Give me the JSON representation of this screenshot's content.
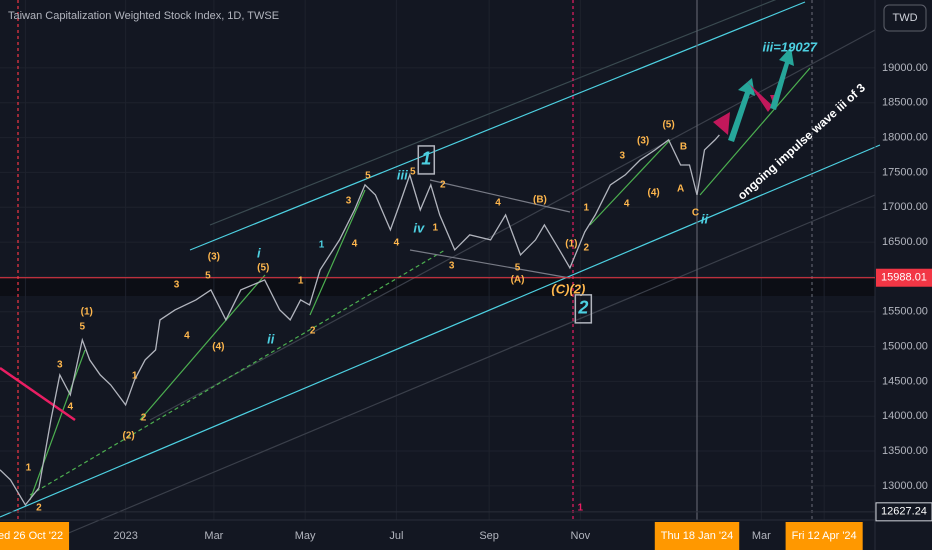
{
  "chart_data": {
    "type": "line",
    "title": "Taiwan Capitalization Weighted Stock Index, 1D, TWSE",
    "currency": "TWD",
    "series": [
      {
        "name": "Taiwan Capitalization Weighted Stock Index",
        "color": "#b2b5be",
        "x": [
          -17,
          -10,
          0,
          9,
          17,
          23,
          30,
          38,
          43,
          50,
          57,
          67,
          73,
          80,
          87,
          90,
          100,
          114,
          124,
          134,
          144,
          160,
          170,
          177,
          184,
          190,
          197,
          210,
          220,
          227,
          234,
          244,
          250,
          257,
          264,
          271,
          277,
          287,
          297,
          311,
          321,
          331,
          341,
          347,
          357,
          364,
          369,
          374,
          381,
          391,
          401,
          411,
          421,
          430,
          438,
          444,
          449,
          454,
          461,
          464
        ],
        "values": [
          13230,
          13086,
          12727,
          12971,
          13947,
          14593,
          14306,
          15096,
          14809,
          14593,
          14450,
          14163,
          14522,
          14809,
          14952,
          15383,
          15526,
          15670,
          15813,
          15383,
          15813,
          15957,
          15526,
          15383,
          15670,
          15598,
          16100,
          16531,
          16962,
          17321,
          17177,
          16675,
          17033,
          17464,
          16962,
          17321,
          16890,
          16387,
          16603,
          16531,
          16890,
          16316,
          16531,
          16746,
          16387,
          16129,
          16387,
          16646,
          16890,
          17321,
          17464,
          17679,
          17823,
          17966,
          17607,
          17607,
          17177,
          17823,
          17966,
          18038
        ]
      }
    ],
    "xlim": [
      -17,
      568
    ],
    "xticks": [
      {
        "value": 0,
        "label": "Wed 26 Oct '22"
      },
      {
        "value": 67,
        "label": "2023"
      },
      {
        "value": 126,
        "label": "Mar"
      },
      {
        "value": 187,
        "label": "May"
      },
      {
        "value": 248,
        "label": "Jul"
      },
      {
        "value": 310,
        "label": "Sep"
      },
      {
        "value": 371,
        "label": "Nov"
      },
      {
        "value": 449,
        "label": "Thu 18 Jan '24"
      },
      {
        "value": 492,
        "label": "Mar"
      },
      {
        "value": 534,
        "label": "Fri 12 Apr '24"
      }
    ],
    "highlighted_xticks": [
      0,
      7,
      9
    ],
    "ylim": [
      12510,
      19975
    ],
    "yticks": [
      {
        "value": 13000,
        "label": "13000.00"
      },
      {
        "value": 13500,
        "label": "13500.00"
      },
      {
        "value": 14000,
        "label": "14000.00"
      },
      {
        "value": 14500,
        "label": "14500.00"
      },
      {
        "value": 15000,
        "label": "15000.00"
      },
      {
        "value": 15500,
        "label": "15500.00"
      },
      {
        "value": 16000,
        "label": "16000.00"
      },
      {
        "value": 16500,
        "label": "16500.00"
      },
      {
        "value": 17000,
        "label": "17000.00"
      },
      {
        "value": 17500,
        "label": "17500.00"
      },
      {
        "value": 18000,
        "label": "18000.00"
      },
      {
        "value": 18500,
        "label": "18500.00"
      },
      {
        "value": 19000,
        "label": "19000.00"
      }
    ],
    "price_markers": [
      {
        "value": 15988.01,
        "label": "15988.01",
        "color": "#f23645"
      },
      {
        "value": 12627.24,
        "label": "12627.24",
        "color": "#131722"
      }
    ],
    "annotations": [
      {
        "text": "(1)",
        "x": 41,
        "y": 15498,
        "color": "#ffb74d"
      },
      {
        "text": "5",
        "x": 38,
        "y": 15282,
        "color": "#ffb74d"
      },
      {
        "text": "3",
        "x": 23,
        "y": 14737,
        "color": "#ffb74d"
      },
      {
        "text": "4",
        "x": 30,
        "y": 14134,
        "color": "#ffb74d"
      },
      {
        "text": "2",
        "x": 9,
        "y": 12684,
        "color": "#ffb74d"
      },
      {
        "text": "1",
        "x": 2,
        "y": 13258,
        "color": "#ffb74d"
      },
      {
        "text": "2",
        "x": 79,
        "y": 13976,
        "color": "#ffb74d"
      },
      {
        "text": "(2)",
        "x": 69,
        "y": 13718,
        "color": "#ffb74d"
      },
      {
        "text": "1",
        "x": 73,
        "y": 14579,
        "color": "#ffb74d"
      },
      {
        "text": "3",
        "x": 101,
        "y": 15885,
        "color": "#ffb74d"
      },
      {
        "text": "5",
        "x": 122,
        "y": 16014,
        "color": "#ffb74d"
      },
      {
        "text": "(3)",
        "x": 126,
        "y": 16287,
        "color": "#ffb74d"
      },
      {
        "text": "4",
        "x": 108,
        "y": 15153,
        "color": "#ffb74d"
      },
      {
        "text": "(4)",
        "x": 129,
        "y": 14995,
        "color": "#ffb74d"
      },
      {
        "text": "(5)",
        "x": 159,
        "y": 16129,
        "color": "#ffb74d"
      },
      {
        "text": "i",
        "x": 156,
        "y": 16330,
        "color": "#4dd0e1"
      },
      {
        "text": "ii",
        "x": 164,
        "y": 15096,
        "color": "#4dd0e1"
      },
      {
        "text": "1",
        "x": 184,
        "y": 15943,
        "color": "#ffb74d"
      },
      {
        "text": "2",
        "x": 192,
        "y": 15225,
        "color": "#ffb74d"
      },
      {
        "text": "3",
        "x": 216,
        "y": 17091,
        "color": "#ffb74d"
      },
      {
        "text": "4",
        "x": 220,
        "y": 16474,
        "color": "#ffb74d"
      },
      {
        "text": "5",
        "x": 229,
        "y": 17450,
        "color": "#ffb74d"
      },
      {
        "text": "1",
        "x": 198,
        "y": 16459,
        "color": "#4dd0e1"
      },
      {
        "text": "iii",
        "x": 252,
        "y": 17450,
        "color": "#4dd0e1"
      },
      {
        "text": "5",
        "x": 259,
        "y": 17507,
        "color": "#ffb74d"
      },
      {
        "text": "iv",
        "x": 263,
        "y": 16689,
        "color": "#4dd0e1"
      },
      {
        "text": "1",
        "x": 268,
        "y": 17679,
        "color": "#4dd0e1",
        "boxed": true
      },
      {
        "text": "2",
        "x": 279,
        "y": 17321,
        "color": "#ffb74d"
      },
      {
        "text": "1",
        "x": 274,
        "y": 16703,
        "color": "#ffb74d"
      },
      {
        "text": "4",
        "x": 248,
        "y": 16488,
        "color": "#ffb74d"
      },
      {
        "text": "3",
        "x": 285,
        "y": 16158,
        "color": "#ffb74d"
      },
      {
        "text": "4",
        "x": 316,
        "y": 17062,
        "color": "#ffb74d"
      },
      {
        "text": "(B)",
        "x": 344,
        "y": 17105,
        "color": "#ffb74d"
      },
      {
        "text": "5",
        "x": 329,
        "y": 16129,
        "color": "#ffb74d"
      },
      {
        "text": "(A)",
        "x": 329,
        "y": 15957,
        "color": "#ffb74d"
      },
      {
        "text": "(C)(2)",
        "x": 363,
        "y": 15813,
        "color": "#ffb74d"
      },
      {
        "text": "2",
        "x": 373,
        "y": 15541,
        "color": "#4dd0e1",
        "boxed": true
      },
      {
        "text": "(1)",
        "x": 365,
        "y": 16474,
        "color": "#ffb74d"
      },
      {
        "text": "2",
        "x": 375,
        "y": 16416,
        "color": "#ffb74d"
      },
      {
        "text": "1",
        "x": 375,
        "y": 16990,
        "color": "#ffb74d"
      },
      {
        "text": "3",
        "x": 399,
        "y": 17737,
        "color": "#ffb74d"
      },
      {
        "text": "4",
        "x": 402,
        "y": 17048,
        "color": "#ffb74d"
      },
      {
        "text": "(3)",
        "x": 413,
        "y": 17952,
        "color": "#ffb74d"
      },
      {
        "text": "(4)",
        "x": 420,
        "y": 17206,
        "color": "#ffb74d"
      },
      {
        "text": "(5)",
        "x": 430,
        "y": 18182,
        "color": "#ffb74d"
      },
      {
        "text": "B",
        "x": 440,
        "y": 17866,
        "color": "#ffb74d"
      },
      {
        "text": "A",
        "x": 438,
        "y": 17263,
        "color": "#ffb74d"
      },
      {
        "text": "C",
        "x": 448,
        "y": 16919,
        "color": "#ffb74d"
      },
      {
        "text": "ii",
        "x": 454,
        "y": 16818,
        "color": "#4dd0e1"
      },
      {
        "text": "iii=19027",
        "x": 511,
        "y": 19287,
        "color": "#4dd0e1"
      },
      {
        "text": "1",
        "x": 371,
        "y": 12684,
        "color": "#e91e63"
      }
    ],
    "note": "ongoing impulse wave iii of 3"
  }
}
